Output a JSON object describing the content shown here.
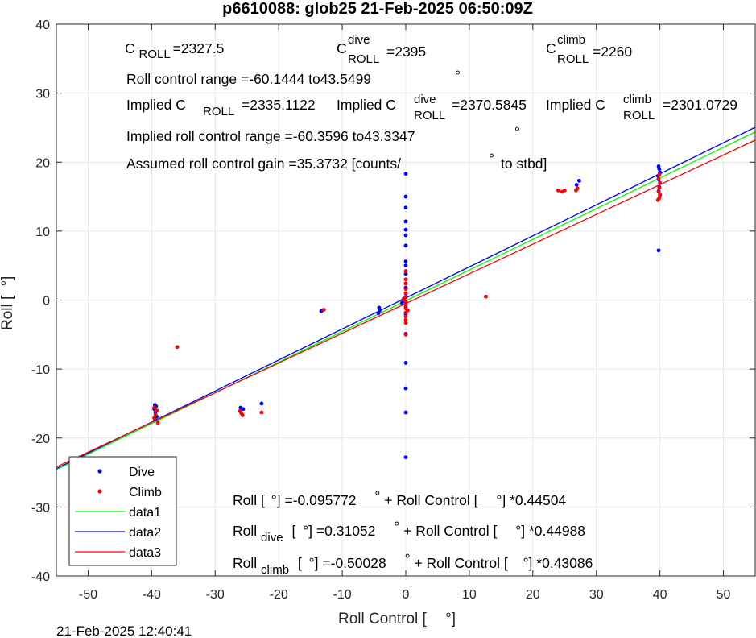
{
  "chart_data": {
    "type": "scatter",
    "title": "p6610088: glob25 21-Feb-2025 06:50:09Z",
    "xlabel_main": "Roll Control [",
    "xlabel_unit": "°]",
    "ylabel_main": "Roll [",
    "ylabel_unit": "°]",
    "footer": "21-Feb-2025 12:40:41",
    "xlim": [
      -55,
      55
    ],
    "ylim": [
      -40,
      40
    ],
    "xticks": [
      -50,
      -40,
      -30,
      -20,
      -10,
      0,
      10,
      20,
      30,
      40,
      50
    ],
    "yticks": [
      -40,
      -30,
      -20,
      -10,
      0,
      10,
      20,
      30,
      40
    ],
    "grid": true,
    "legend_position": "bottom-left",
    "annotations": {
      "c_roll_label": "C",
      "c_roll_sub": "ROLL",
      "c_roll_value": "=2327.5",
      "c_dive_label": "C",
      "c_dive_sup": "dive",
      "c_dive_sub": "ROLL",
      "c_dive_value": "=2395",
      "c_climb_label": "C",
      "c_climb_sup": "climb",
      "c_climb_sub": "ROLL",
      "c_climb_value": "=2260",
      "range_line_a": "Roll control range =-60.1444 to43.5499",
      "range_line_b": "°",
      "implied_a": "Implied C",
      "implied_a_sub": "ROLL",
      "implied_a_val": "=2335.1122",
      "implied_b": "Implied C",
      "implied_b_sup": "dive",
      "implied_b_sub": "ROLL",
      "implied_b_val": "=2370.5845",
      "implied_c": "Implied C",
      "implied_c_sup": "climb",
      "implied_c_sub": "ROLL",
      "implied_c_val": "=2301.0729",
      "implied_range_a": "Implied roll control range =-60.3596 to43.3347",
      "implied_range_b": "°",
      "gain_a": "Assumed roll control gain =35.3732 [counts/",
      "gain_b": "°",
      "gain_c": "to stbd]",
      "fit_all_a": "Roll [",
      "fit_all_b": "°] =-0.095772",
      "fit_all_c": "°",
      "fit_all_d": "+ Roll Control [",
      "fit_all_e": "°] *0.44504",
      "fit_dive_a": "Roll",
      "fit_dive_sub": "dive",
      "fit_dive_b": "[",
      "fit_dive_c": "°] =0.31052",
      "fit_dive_d": "°",
      "fit_dive_e": "+ Roll Control [",
      "fit_dive_f": "°] *0.44988",
      "fit_climb_a": "Roll",
      "fit_climb_sub": "climb",
      "fit_climb_b": "[",
      "fit_climb_c": "°] =-0.50028",
      "fit_climb_d": "°",
      "fit_climb_e": "+ Roll Control [",
      "fit_climb_f": "°] *0.43086"
    },
    "series": [
      {
        "name": "Dive",
        "kind": "points",
        "color": "#0000ff",
        "points": [
          [
            -39.5,
            -15.2
          ],
          [
            -39.3,
            -15.4
          ],
          [
            -39.6,
            -15.8
          ],
          [
            -39.4,
            -16.3
          ],
          [
            -39.2,
            -16.9
          ],
          [
            -39.5,
            -17.3
          ],
          [
            -26.0,
            -15.6
          ],
          [
            -25.6,
            -15.8
          ],
          [
            -22.7,
            -15.0
          ],
          [
            -13.3,
            -1.6
          ],
          [
            -4.2,
            -1.1
          ],
          [
            -4.1,
            -1.5
          ],
          [
            -4.3,
            -1.9
          ],
          [
            -0.6,
            -0.4
          ],
          [
            -0.3,
            0.2
          ],
          [
            0.0,
            18.3
          ],
          [
            0.0,
            15.0
          ],
          [
            0.0,
            13.4
          ],
          [
            0.0,
            11.4
          ],
          [
            0.0,
            10.2
          ],
          [
            0.0,
            9.4
          ],
          [
            0.0,
            7.9
          ],
          [
            0.0,
            5.6
          ],
          [
            0.0,
            5.0
          ],
          [
            0.0,
            3.8
          ],
          [
            0.0,
            2.4
          ],
          [
            0.0,
            1.8
          ],
          [
            0.0,
            1.0
          ],
          [
            0.0,
            0.5
          ],
          [
            0.0,
            -0.3
          ],
          [
            0.0,
            -1.0
          ],
          [
            0.0,
            -2.0
          ],
          [
            0.0,
            -4.9
          ],
          [
            0.0,
            -9.1
          ],
          [
            0.0,
            -12.8
          ],
          [
            0.0,
            -16.3
          ],
          [
            0.0,
            -22.8
          ],
          [
            26.9,
            16.7
          ],
          [
            27.3,
            17.3
          ],
          [
            39.8,
            19.4
          ],
          [
            39.9,
            19.0
          ],
          [
            40.0,
            18.5
          ],
          [
            39.7,
            18.0
          ],
          [
            39.8,
            17.5
          ],
          [
            40.0,
            17.0
          ],
          [
            39.9,
            16.4
          ],
          [
            39.8,
            15.8
          ],
          [
            40.0,
            15.2
          ],
          [
            39.8,
            7.2
          ]
        ]
      },
      {
        "name": "Climb",
        "kind": "points",
        "color": "#ff0000",
        "points": [
          [
            -39.6,
            -15.6
          ],
          [
            -39.2,
            -16.0
          ],
          [
            -39.4,
            -16.6
          ],
          [
            -39.6,
            -17.1
          ],
          [
            -39.0,
            -17.8
          ],
          [
            -36.0,
            -6.8
          ],
          [
            -26.1,
            -16.1
          ],
          [
            -25.7,
            -16.7
          ],
          [
            -25.9,
            -16.4
          ],
          [
            -22.7,
            -16.3
          ],
          [
            -12.9,
            -1.4
          ],
          [
            0.0,
            4.2
          ],
          [
            0.0,
            3.0
          ],
          [
            0.0,
            2.4
          ],
          [
            0.0,
            1.6
          ],
          [
            0.0,
            1.0
          ],
          [
            0.0,
            0.4
          ],
          [
            0.0,
            -0.2
          ],
          [
            0.0,
            -0.7
          ],
          [
            0.0,
            -1.2
          ],
          [
            0.0,
            -1.8
          ],
          [
            0.0,
            -2.4
          ],
          [
            0.0,
            -2.9
          ],
          [
            0.0,
            -3.3
          ],
          [
            0.0,
            -5.0
          ],
          [
            -0.4,
            0.1
          ],
          [
            0.3,
            -1.5
          ],
          [
            12.6,
            0.5
          ],
          [
            24.0,
            15.9
          ],
          [
            24.6,
            15.7
          ],
          [
            25.0,
            15.9
          ],
          [
            26.8,
            15.9
          ],
          [
            27.0,
            16.2
          ],
          [
            39.7,
            14.5
          ],
          [
            39.9,
            14.8
          ],
          [
            40.0,
            15.3
          ],
          [
            39.8,
            15.7
          ],
          [
            39.9,
            16.3
          ],
          [
            40.0,
            17.0
          ],
          [
            39.8,
            17.6
          ],
          [
            39.9,
            18.2
          ]
        ]
      },
      {
        "name": "data1",
        "kind": "line",
        "color": "#00ff00",
        "slope": 0.44504,
        "intercept": -0.095772
      },
      {
        "name": "data2",
        "kind": "line",
        "color": "#0000ff",
        "slope": 0.44988,
        "intercept": 0.31052
      },
      {
        "name": "data3",
        "kind": "line",
        "color": "#ff0000",
        "slope": 0.43086,
        "intercept": -0.50028
      }
    ]
  }
}
